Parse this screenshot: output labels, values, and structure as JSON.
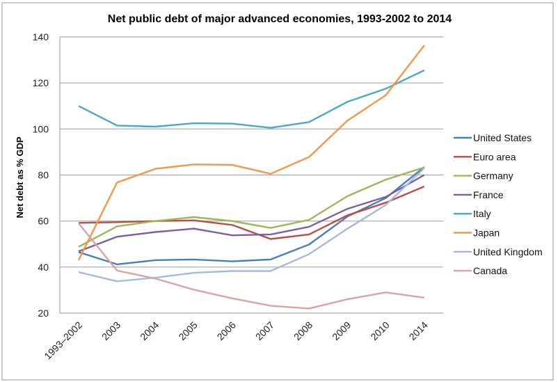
{
  "chart_data": {
    "type": "line",
    "title": "Net public debt of major advanced economies, 1993-2002 to 2014",
    "xlabel": "",
    "ylabel": "Net debt as % GDP",
    "ylim": [
      20,
      140
    ],
    "yticks": [
      20,
      40,
      60,
      80,
      100,
      120,
      140
    ],
    "grid": true,
    "legend_position": "right",
    "categories": [
      "1993–2002",
      "2003",
      "2004",
      "2005",
      "2006",
      "2007",
      "2008",
      "2009",
      "2010",
      "2014"
    ],
    "series": [
      {
        "name": "United States",
        "color": "#4a7ebb",
        "values": [
          46.5,
          41.2,
          43.0,
          43.3,
          42.5,
          43.3,
          49.8,
          62.0,
          70.0,
          83.5
        ]
      },
      {
        "name": "Euro area",
        "color": "#be4b48",
        "values": [
          59.2,
          59.5,
          60.0,
          60.3,
          58.3,
          52.2,
          54.2,
          62.5,
          68.0,
          75.0
        ]
      },
      {
        "name": "Germany",
        "color": "#98b954",
        "values": [
          48.8,
          57.7,
          60.0,
          61.7,
          60.0,
          57.0,
          60.5,
          70.8,
          78.0,
          83.3
        ]
      },
      {
        "name": "France",
        "color": "#7d5fa0",
        "values": [
          46.8,
          53.2,
          55.2,
          56.7,
          53.8,
          54.2,
          57.5,
          65.3,
          70.5,
          80.0
        ]
      },
      {
        "name": "Italy",
        "color": "#46aac5",
        "values": [
          110.0,
          101.5,
          101.0,
          102.5,
          102.3,
          100.5,
          103.0,
          111.8,
          117.5,
          125.5
        ]
      },
      {
        "name": "Japan",
        "color": "#f69545",
        "values": [
          43.0,
          76.7,
          82.7,
          84.6,
          84.4,
          80.5,
          87.8,
          103.6,
          114.7,
          136.3
        ]
      },
      {
        "name": "United Kingdom",
        "color": "#a5b9de",
        "values": [
          37.8,
          33.8,
          35.4,
          37.5,
          38.3,
          38.3,
          45.6,
          56.7,
          67.0,
          83.0
        ]
      },
      {
        "name": "Canada",
        "color": "#dba3a2",
        "values": [
          59.0,
          38.5,
          35.0,
          30.2,
          26.4,
          23.2,
          22.0,
          26.0,
          29.0,
          26.7
        ]
      }
    ]
  }
}
